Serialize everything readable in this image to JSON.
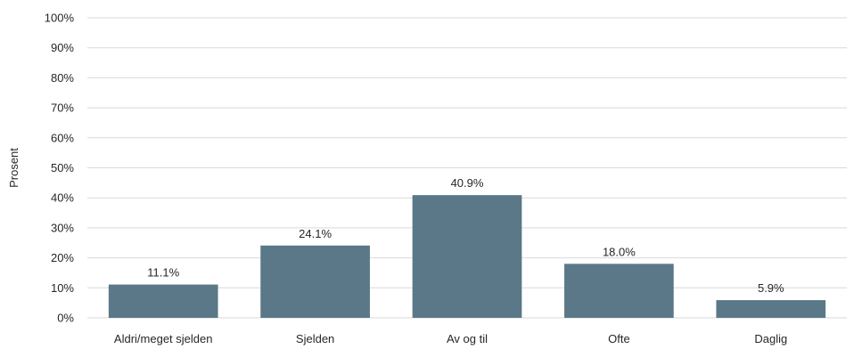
{
  "chart_data": {
    "type": "bar",
    "ylabel": "Prosent",
    "ylim": [
      0,
      100
    ],
    "yticks": [
      0,
      10,
      20,
      30,
      40,
      50,
      60,
      70,
      80,
      90,
      100
    ],
    "ytick_suffix": "%",
    "grid": true,
    "categories": [
      "Aldri/meget sjelden",
      "Sjelden",
      "Av og til",
      "Ofte",
      "Daglig"
    ],
    "values": [
      11.1,
      24.1,
      40.9,
      18.0,
      5.9
    ],
    "data_labels": [
      "11.1%",
      "24.1%",
      "40.9%",
      "18.0%",
      "5.9%"
    ],
    "bar_color": "#5b7888",
    "grid_color": "#d9d9d9"
  }
}
